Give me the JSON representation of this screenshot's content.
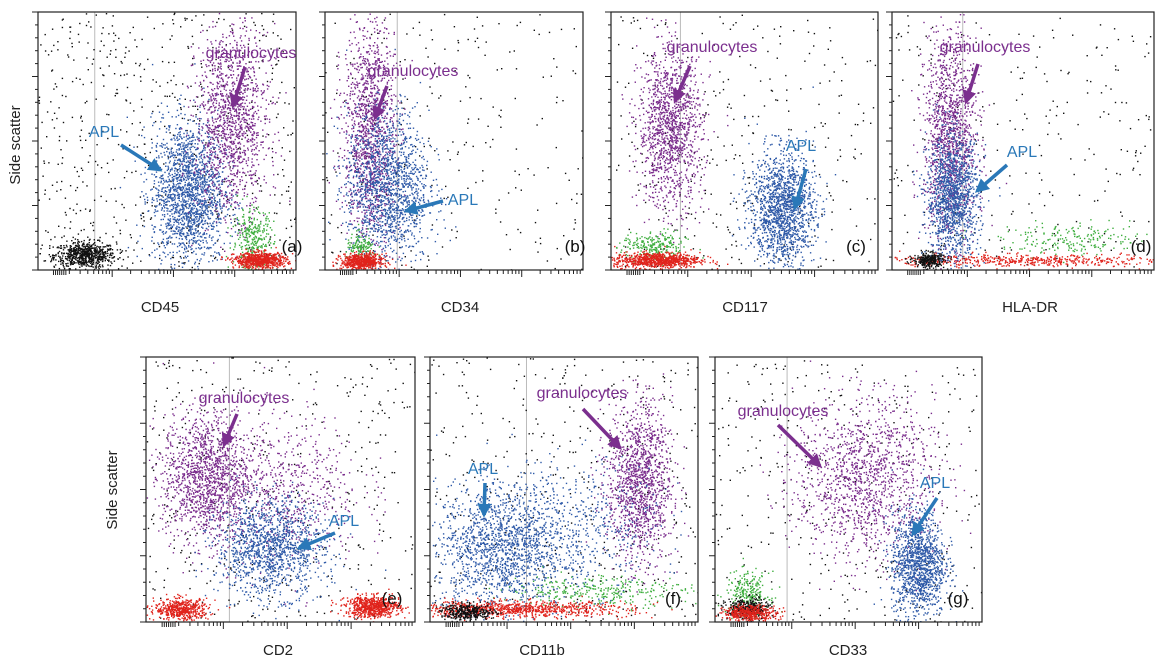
{
  "figure": {
    "y_axis_label": "Side scatter",
    "colors": {
      "granulocytes": "#7a2c8c",
      "apl": "#2f5aa8",
      "green": "#3fae3f",
      "red": "#e0231c",
      "black": "#111111",
      "annotation_purple": "#7b2f8e",
      "annotation_blue": "#2a78b8",
      "frame": "#222222",
      "gridline": "#bbbbbb"
    }
  },
  "chart_data": [
    {
      "type": "scatter",
      "panel": "(a)",
      "xlabel": "CD45",
      "ylabel": "Side scatter",
      "xscale": "log",
      "annotations": [
        {
          "text": "granulocytes",
          "color": "purple"
        },
        {
          "text": "APL",
          "color": "blue"
        }
      ],
      "populations": [
        {
          "color": "black",
          "cx": 0.18,
          "cy": 0.06,
          "sx": 0.06,
          "sy": 0.025,
          "n": 700
        },
        {
          "color": "black",
          "uniform": true,
          "n": 600
        },
        {
          "color": "apl",
          "cx": 0.58,
          "cy": 0.3,
          "sx": 0.07,
          "sy": 0.14,
          "n": 1800
        },
        {
          "color": "granulocytes",
          "cx": 0.75,
          "cy": 0.58,
          "sx": 0.07,
          "sy": 0.18,
          "n": 1300
        },
        {
          "color": "green",
          "cx": 0.83,
          "cy": 0.12,
          "sx": 0.04,
          "sy": 0.06,
          "n": 300
        },
        {
          "color": "red",
          "cx": 0.86,
          "cy": 0.04,
          "sx": 0.05,
          "sy": 0.015,
          "n": 700
        }
      ]
    },
    {
      "type": "scatter",
      "panel": "(b)",
      "xlabel": "CD34",
      "ylabel": "",
      "xscale": "log",
      "annotations": [
        {
          "text": "granulocytes",
          "color": "purple"
        },
        {
          "text": "APL",
          "color": "blue"
        }
      ],
      "populations": [
        {
          "color": "black",
          "uniform": true,
          "n": 250
        },
        {
          "color": "granulocytes",
          "cx": 0.17,
          "cy": 0.55,
          "sx": 0.05,
          "sy": 0.22,
          "n": 1300
        },
        {
          "color": "apl",
          "cx": 0.24,
          "cy": 0.32,
          "sx": 0.08,
          "sy": 0.15,
          "n": 1500
        },
        {
          "color": "green",
          "cx": 0.14,
          "cy": 0.08,
          "sx": 0.03,
          "sy": 0.03,
          "n": 150
        },
        {
          "color": "red",
          "cx": 0.14,
          "cy": 0.035,
          "sx": 0.04,
          "sy": 0.015,
          "n": 600
        }
      ]
    },
    {
      "type": "scatter",
      "panel": "(c)",
      "xlabel": "CD117",
      "ylabel": "",
      "xscale": "log",
      "annotations": [
        {
          "text": "granulocytes",
          "color": "purple"
        },
        {
          "text": "APL",
          "color": "blue"
        }
      ],
      "populations": [
        {
          "color": "black",
          "uniform": true,
          "n": 300
        },
        {
          "color": "granulocytes",
          "cx": 0.22,
          "cy": 0.55,
          "sx": 0.06,
          "sy": 0.15,
          "n": 1300
        },
        {
          "color": "apl",
          "cx": 0.64,
          "cy": 0.24,
          "sx": 0.06,
          "sy": 0.11,
          "n": 1500
        },
        {
          "color": "green",
          "cx": 0.16,
          "cy": 0.09,
          "sx": 0.06,
          "sy": 0.03,
          "n": 250
        },
        {
          "color": "red",
          "cx": 0.17,
          "cy": 0.04,
          "sx": 0.08,
          "sy": 0.015,
          "n": 800
        }
      ]
    },
    {
      "type": "scatter",
      "panel": "(d)",
      "xlabel": "HLA-DR",
      "ylabel": "",
      "xscale": "log",
      "annotations": [
        {
          "text": "granulocytes",
          "color": "purple"
        },
        {
          "text": "APL",
          "color": "blue"
        }
      ],
      "populations": [
        {
          "color": "black",
          "uniform": true,
          "n": 250
        },
        {
          "color": "granulocytes",
          "cx": 0.22,
          "cy": 0.52,
          "sx": 0.05,
          "sy": 0.2,
          "n": 1300
        },
        {
          "color": "apl",
          "cx": 0.23,
          "cy": 0.28,
          "sx": 0.05,
          "sy": 0.12,
          "n": 1300
        },
        {
          "color": "green",
          "cx": 0.7,
          "cy": 0.12,
          "sx": 0.14,
          "sy": 0.03,
          "n": 200
        },
        {
          "color": "red",
          "cx": 0.5,
          "cy": 0.04,
          "sx": 0.3,
          "sy": 0.012,
          "n": 500
        },
        {
          "color": "black",
          "cx": 0.14,
          "cy": 0.04,
          "sx": 0.03,
          "sy": 0.015,
          "n": 300
        }
      ]
    },
    {
      "type": "scatter",
      "panel": "(e)",
      "xlabel": "CD2",
      "ylabel": "Side scatter",
      "xscale": "log",
      "annotations": [
        {
          "text": "granulocytes",
          "color": "purple"
        },
        {
          "text": "APL",
          "color": "blue"
        }
      ],
      "populations": [
        {
          "color": "black",
          "uniform": true,
          "n": 400
        },
        {
          "color": "granulocytes",
          "cx": 0.22,
          "cy": 0.55,
          "sx": 0.08,
          "sy": 0.12,
          "n": 1300
        },
        {
          "color": "granulocytes",
          "cx": 0.5,
          "cy": 0.5,
          "sx": 0.15,
          "sy": 0.14,
          "n": 700
        },
        {
          "color": "apl",
          "cx": 0.46,
          "cy": 0.28,
          "sx": 0.1,
          "sy": 0.09,
          "n": 1300
        },
        {
          "color": "red",
          "cx": 0.13,
          "cy": 0.05,
          "sx": 0.05,
          "sy": 0.02,
          "n": 500
        },
        {
          "color": "red",
          "cx": 0.84,
          "cy": 0.06,
          "sx": 0.05,
          "sy": 0.02,
          "n": 700
        }
      ]
    },
    {
      "type": "scatter",
      "panel": "(f)",
      "xlabel": "CD11b",
      "ylabel": "",
      "xscale": "log",
      "annotations": [
        {
          "text": "granulocytes",
          "color": "purple"
        },
        {
          "text": "APL",
          "color": "blue"
        }
      ],
      "populations": [
        {
          "color": "black",
          "uniform": true,
          "n": 400
        },
        {
          "color": "granulocytes",
          "cx": 0.78,
          "cy": 0.53,
          "sx": 0.06,
          "sy": 0.15,
          "n": 1300
        },
        {
          "color": "apl",
          "cx": 0.26,
          "cy": 0.28,
          "sx": 0.12,
          "sy": 0.12,
          "n": 1500
        },
        {
          "color": "apl",
          "cx": 0.55,
          "cy": 0.36,
          "sx": 0.15,
          "sy": 0.12,
          "n": 500
        },
        {
          "color": "green",
          "cx": 0.63,
          "cy": 0.12,
          "sx": 0.17,
          "sy": 0.03,
          "n": 300
        },
        {
          "color": "red",
          "cx": 0.3,
          "cy": 0.05,
          "sx": 0.22,
          "sy": 0.015,
          "n": 900
        },
        {
          "color": "black",
          "cx": 0.14,
          "cy": 0.04,
          "sx": 0.05,
          "sy": 0.015,
          "n": 350
        }
      ]
    },
    {
      "type": "scatter",
      "panel": "(g)",
      "xlabel": "CD33",
      "ylabel": "",
      "xscale": "log",
      "annotations": [
        {
          "text": "granulocytes",
          "color": "purple"
        },
        {
          "text": "APL",
          "color": "blue"
        }
      ],
      "populations": [
        {
          "color": "black",
          "uniform": true,
          "n": 350
        },
        {
          "color": "granulocytes",
          "cx": 0.56,
          "cy": 0.54,
          "sx": 0.13,
          "sy": 0.15,
          "n": 1300
        },
        {
          "color": "apl",
          "cx": 0.76,
          "cy": 0.22,
          "sx": 0.05,
          "sy": 0.1,
          "n": 1300
        },
        {
          "color": "green",
          "cx": 0.12,
          "cy": 0.11,
          "sx": 0.04,
          "sy": 0.04,
          "n": 250
        },
        {
          "color": "black",
          "cx": 0.12,
          "cy": 0.05,
          "sx": 0.04,
          "sy": 0.02,
          "n": 400
        },
        {
          "color": "red",
          "cx": 0.13,
          "cy": 0.035,
          "sx": 0.05,
          "sy": 0.015,
          "n": 400
        }
      ]
    }
  ]
}
